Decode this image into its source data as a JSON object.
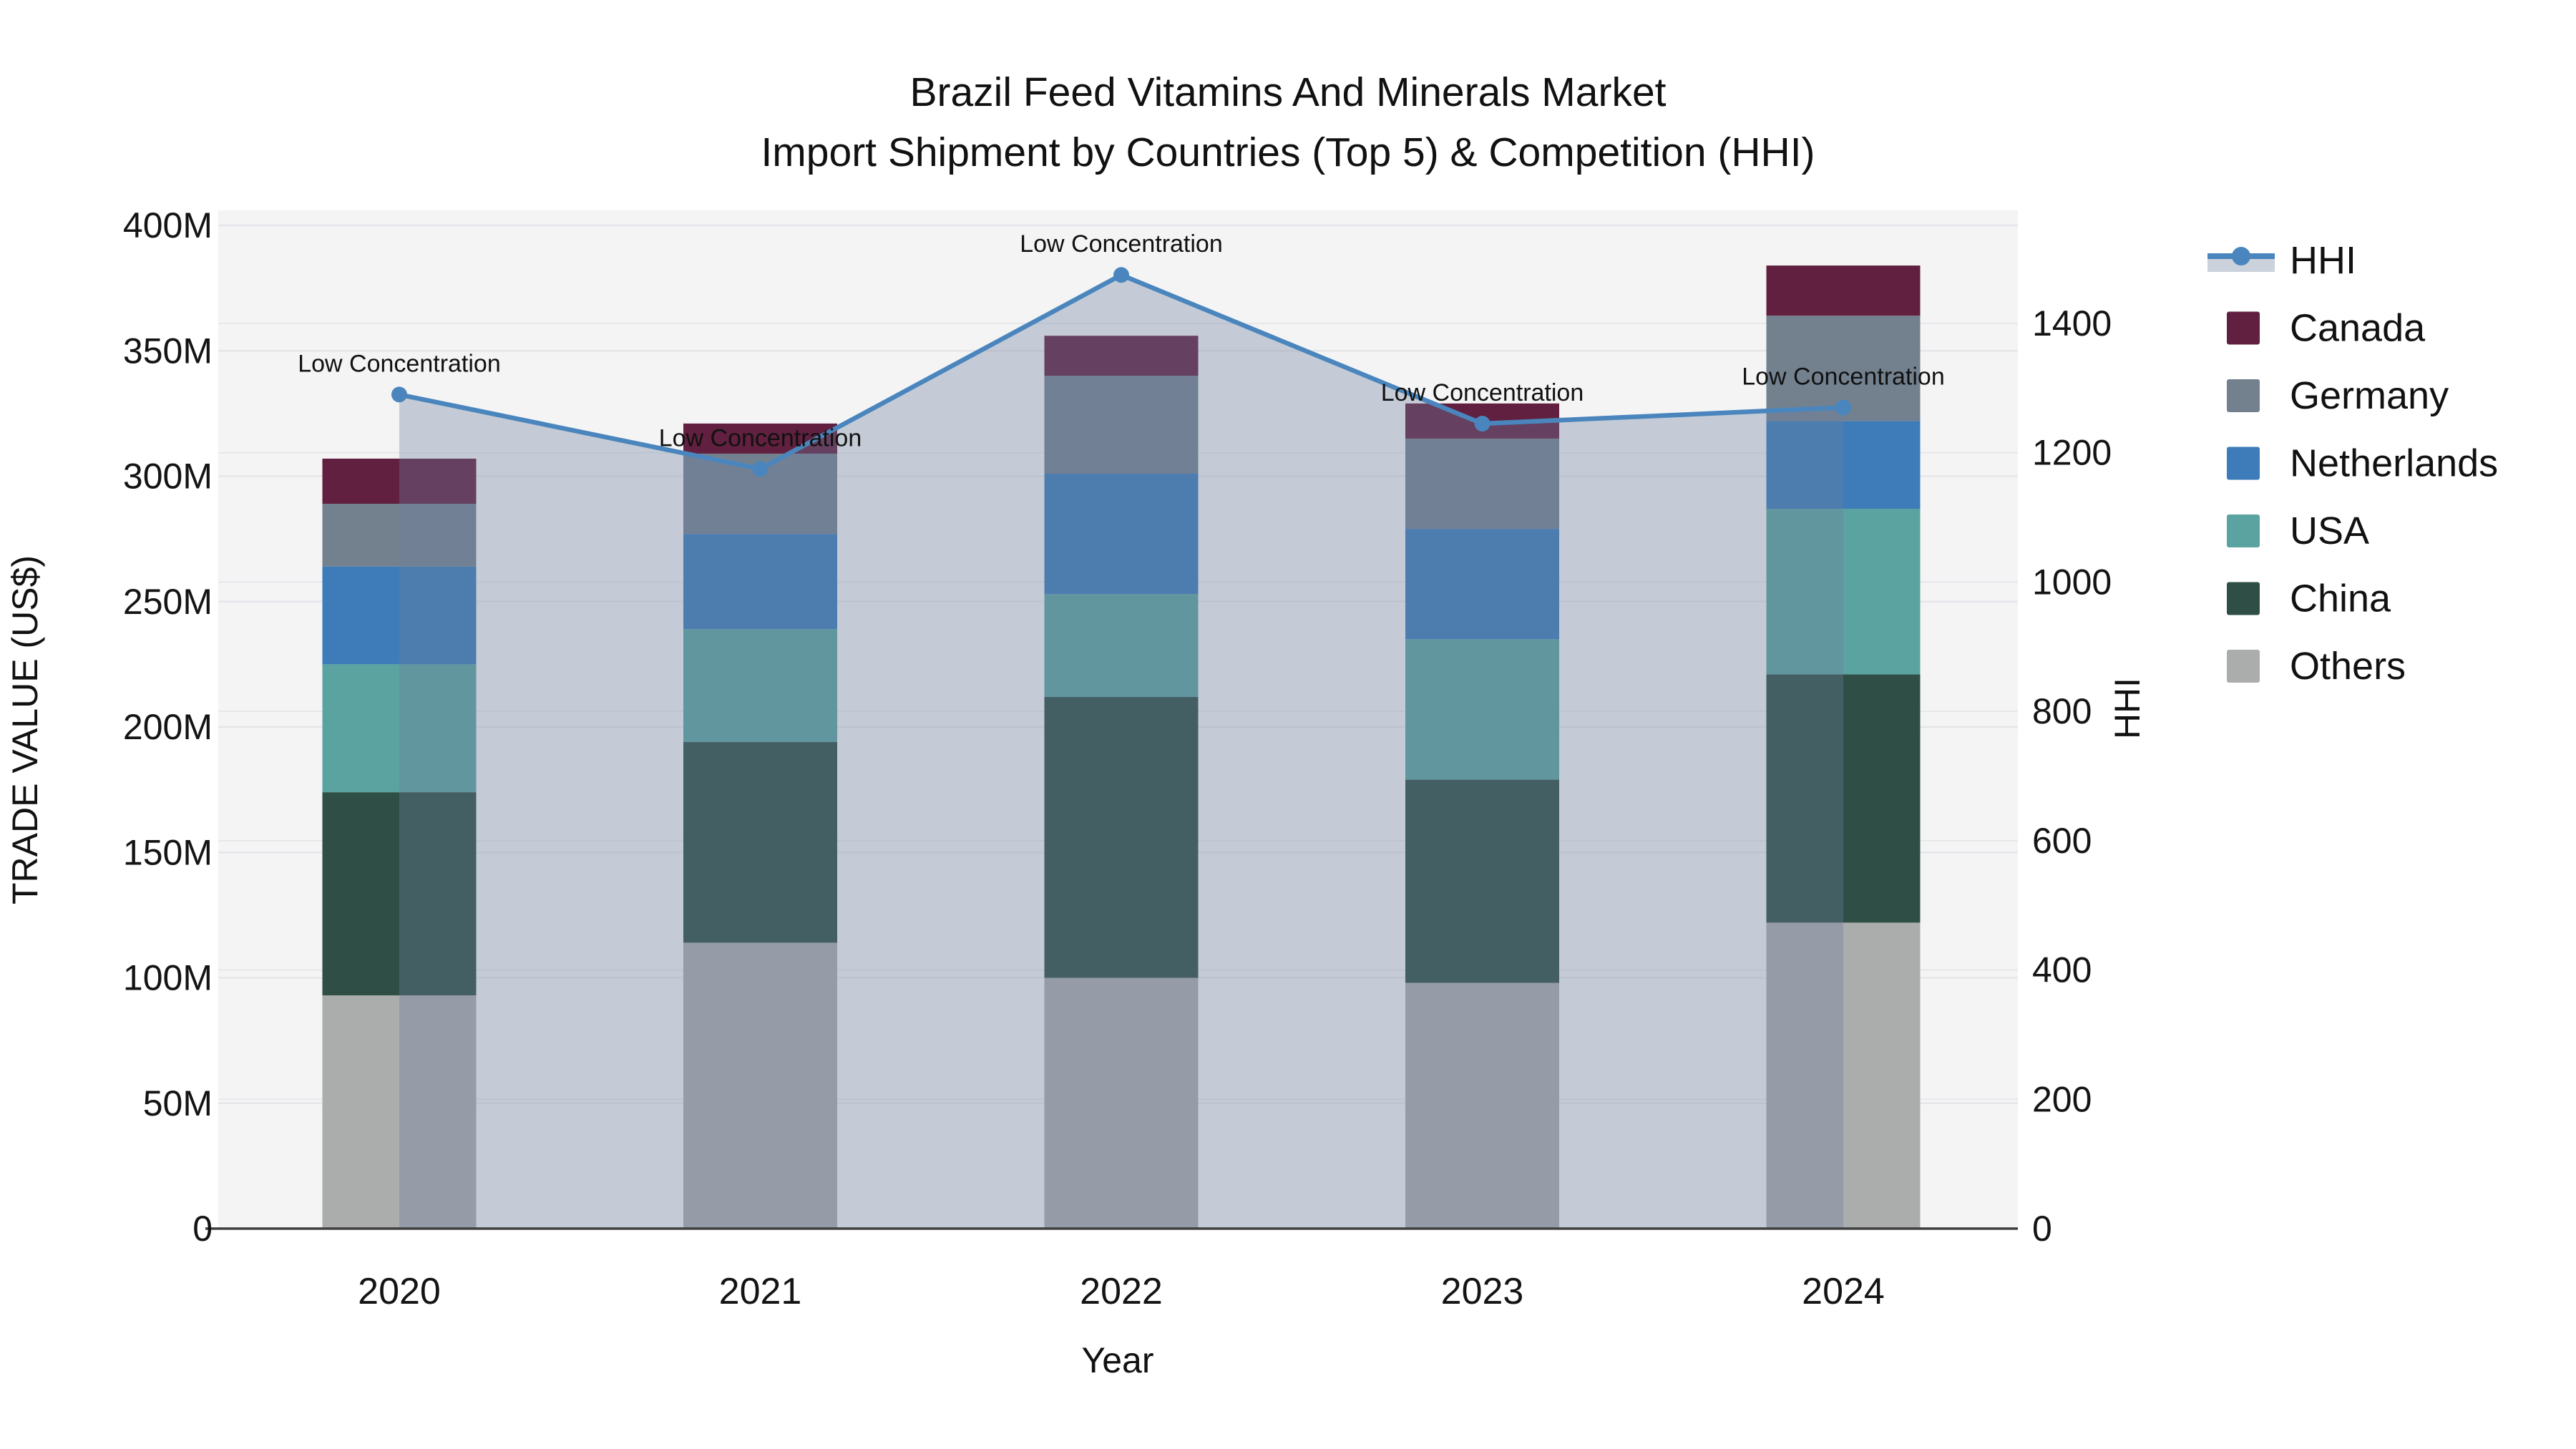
{
  "title": {
    "line1": "Brazil Feed Vitamins And Minerals Market",
    "line2": "Import Shipment by Countries (Top 5) & Competition (HHI)"
  },
  "axes": {
    "x": {
      "title": "Year",
      "tick_labels": [
        "2020",
        "2021",
        "2022",
        "2023",
        "2024"
      ]
    },
    "y_left": {
      "title": "TRADE VALUE (US$)",
      "tick_labels": [
        "0",
        "50M",
        "100M",
        "150M",
        "200M",
        "250M",
        "300M",
        "350M",
        "400M"
      ],
      "tick_values_millions": [
        0,
        50,
        100,
        150,
        200,
        250,
        300,
        350,
        400
      ]
    },
    "y_right": {
      "title": "HHI",
      "tick_labels": [
        "0",
        "200",
        "400",
        "600",
        "800",
        "1000",
        "1200",
        "1400"
      ],
      "tick_values": [
        0,
        200,
        400,
        600,
        800,
        1000,
        1200,
        1400
      ]
    }
  },
  "legend": [
    {
      "label": "HHI",
      "type": "line-marker",
      "color": "#4a86bd",
      "band_color": "#ccd2dc"
    },
    {
      "label": "Canada",
      "type": "box",
      "color": "#61203f"
    },
    {
      "label": "Germany",
      "type": "box",
      "color": "#73818f"
    },
    {
      "label": "Netherlands",
      "type": "box",
      "color": "#3d7cb8"
    },
    {
      "label": "USA",
      "type": "box",
      "color": "#5ba3a0"
    },
    {
      "label": "China",
      "type": "box",
      "color": "#2f4f46"
    },
    {
      "label": "Others",
      "type": "box",
      "color": "#abadad"
    }
  ],
  "chart_data": {
    "type": "bar",
    "subtype": "stacked-bars-with-line-overlay",
    "categories": [
      "2020",
      "2021",
      "2022",
      "2023",
      "2024"
    ],
    "unit": "millions USD",
    "series": [
      {
        "name": "Others",
        "values": [
          93,
          114,
          100,
          98,
          122
        ],
        "color": "#abadad"
      },
      {
        "name": "China",
        "values": [
          81,
          80,
          112,
          81,
          99
        ],
        "color": "#2f4f46"
      },
      {
        "name": "USA",
        "values": [
          51,
          45,
          41,
          56,
          66
        ],
        "color": "#5ba3a0"
      },
      {
        "name": "Netherlands",
        "values": [
          39,
          38,
          48,
          44,
          35
        ],
        "color": "#3d7cb8"
      },
      {
        "name": "Germany",
        "values": [
          25,
          32,
          39,
          36,
          42
        ],
        "color": "#73818f"
      },
      {
        "name": "Canada",
        "values": [
          18,
          12,
          16,
          14,
          20
        ],
        "color": "#61203f"
      }
    ],
    "totals_millions": [
      307,
      321,
      356,
      329,
      384
    ],
    "line": {
      "name": "HHI",
      "values": [
        1290,
        1175,
        1475,
        1245,
        1270
      ],
      "color": "#4a86bd",
      "area_fill": "rgba(108,126,157,0.35)",
      "annotations": [
        "Low Concentration",
        "Low Concentration",
        "Low Concentration",
        "Low Concentration",
        "Low Concentration"
      ]
    },
    "title": "Brazil Feed Vitamins And Minerals Market — Import Shipment by Countries (Top 5) & Competition (HHI)",
    "xlabel": "Year",
    "ylabel_left": "TRADE VALUE (US$)",
    "ylabel_right": "HHI",
    "ylim_left_millions": [
      0,
      400
    ],
    "ylim_right": [
      0,
      1400
    ],
    "grid": true,
    "legend_position": "right",
    "colors": {
      "plot_background": "#f4f4f5",
      "gridline": "#e6e6ea",
      "axis_line": "#3f3f3f"
    }
  }
}
